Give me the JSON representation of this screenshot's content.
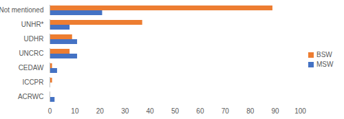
{
  "chart_data": {
    "type": "bar",
    "orientation": "horizontal",
    "categories": [
      "Not mentioned",
      "UNHR*",
      "UDHR",
      "UNCRC",
      "CEDAW",
      "ICCPR",
      "ACRWC"
    ],
    "series": [
      {
        "name": "BSW",
        "color": "#ed7d31",
        "values": [
          89,
          37,
          9,
          8,
          1,
          1,
          0
        ]
      },
      {
        "name": "MSW",
        "color": "#4472c4",
        "values": [
          21,
          8,
          11,
          11,
          3,
          0,
          2
        ]
      }
    ],
    "xlim": [
      0,
      100
    ],
    "xticks": [
      0,
      10,
      20,
      30,
      40,
      50,
      60,
      70,
      80,
      90,
      100
    ],
    "grid": false,
    "legend": "right"
  }
}
